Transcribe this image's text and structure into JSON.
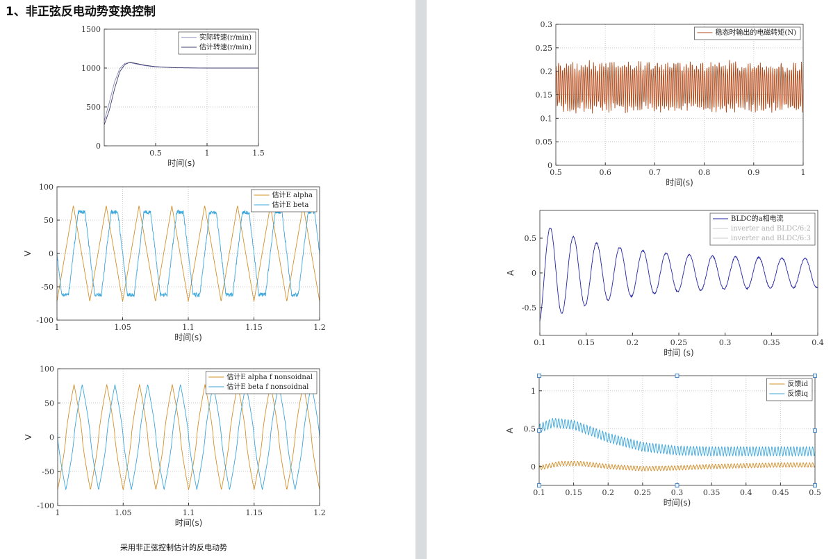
{
  "document": {
    "heading": "1、非正弦反电动势变换控制",
    "caption": "采用非正弦控制估计的反电动势"
  },
  "chart_data": [
    {
      "id": "speed",
      "type": "line",
      "xlabel": "时间(s)",
      "ylabel": "",
      "xlim": [
        0,
        1.5
      ],
      "ylim": [
        0,
        1500
      ],
      "xticks": [
        0.5,
        1,
        1.5
      ],
      "xticklabels": [
        "0.5",
        "1",
        "1.5"
      ],
      "yticks": [
        0,
        500,
        1000,
        1500
      ],
      "yticklabels": [
        "0",
        "500",
        "1000",
        "1500"
      ],
      "grid": true,
      "legend": "top-right",
      "series": [
        {
          "name": "实际转速(r/min)",
          "color": "#8a89b8",
          "x": [
            0,
            0.05,
            0.1,
            0.15,
            0.2,
            0.25,
            0.3,
            0.4,
            0.5,
            0.7,
            1.0,
            1.5
          ],
          "y": [
            320,
            560,
            820,
            990,
            1060,
            1070,
            1055,
            1030,
            1015,
            1003,
            1000,
            1000
          ]
        },
        {
          "name": "估计转速(r/min)",
          "color": "#3c3c6e",
          "x": [
            0,
            0.05,
            0.1,
            0.15,
            0.2,
            0.25,
            0.3,
            0.4,
            0.5,
            0.7,
            1.0,
            1.5
          ],
          "y": [
            270,
            460,
            730,
            950,
            1045,
            1075,
            1062,
            1035,
            1018,
            1004,
            1000,
            1000
          ]
        }
      ]
    },
    {
      "id": "emf-est",
      "type": "line",
      "xlabel": "时间(s)",
      "ylabel": "V",
      "xlim": [
        1,
        1.2
      ],
      "ylim": [
        -100,
        100
      ],
      "xticks": [
        1,
        1.05,
        1.1,
        1.15,
        1.2
      ],
      "xticklabels": [
        "1",
        "1.05",
        "1.1",
        "1.15",
        "1.2"
      ],
      "yticks": [
        -100,
        -50,
        0,
        50,
        100
      ],
      "yticklabels": [
        "-100",
        "-50",
        "0",
        "50",
        "100"
      ],
      "grid": true,
      "legend": "top-right",
      "wave": {
        "frequency_hz": 40,
        "kind": "triangle_trapezoid"
      },
      "series": [
        {
          "name": "估计E alpha",
          "color": "#d4902a",
          "amplitude": 72,
          "phase_deg": 0,
          "shape": "triangle"
        },
        {
          "name": "估计E beta",
          "color": "#3aa6dc",
          "amplitude": 62,
          "phase_deg": -90,
          "shape": "trapezoid"
        }
      ]
    },
    {
      "id": "emf-nonsin",
      "type": "line",
      "xlabel": "时间(s)",
      "ylabel": "V",
      "xlim": [
        1,
        1.2
      ],
      "ylim": [
        -100,
        100
      ],
      "xticks": [
        1,
        1.05,
        1.1,
        1.15,
        1.2
      ],
      "xticklabels": [
        "1",
        "1.05",
        "1.1",
        "1.15",
        "1.2"
      ],
      "yticks": [
        -100,
        -50,
        0,
        50,
        100
      ],
      "yticklabels": [
        "-100",
        "-50",
        "0",
        "50",
        "100"
      ],
      "grid": true,
      "legend": "top-right",
      "wave": {
        "frequency_hz": 40,
        "kind": "nonsinusoidal"
      },
      "series": [
        {
          "name": "估计E alpha f nonsoidnal",
          "color": "#d4902a",
          "amplitude": 77,
          "phase_deg": 0,
          "shape": "peaked"
        },
        {
          "name": "估计E beta f nonsoidnal",
          "color": "#3aa6dc",
          "amplitude": 77,
          "phase_deg": -90,
          "shape": "peaked"
        }
      ]
    },
    {
      "id": "torque",
      "type": "line",
      "xlabel": "时间(s)",
      "ylabel": "",
      "xlim": [
        0.5,
        1
      ],
      "ylim": [
        0,
        0.3
      ],
      "xticks": [
        0.5,
        0.6,
        0.7,
        0.8,
        0.9,
        1
      ],
      "xticklabels": [
        "0.5",
        "0.6",
        "0.7",
        "0.8",
        "0.9",
        "1"
      ],
      "yticks": [
        0,
        0.05,
        0.1,
        0.15,
        0.2,
        0.25,
        0.3
      ],
      "yticklabels": [
        "0",
        "0.05",
        "0.1",
        "0.15",
        "0.2",
        "0.25",
        "0.3"
      ],
      "grid": true,
      "legend": "top-right",
      "series": [
        {
          "name": "稳态时输出的电磁转矩(N)",
          "color": "#b34a1a",
          "mean": 0.167,
          "ripple_amplitude": 0.045,
          "ripple_hz": 240
        }
      ]
    },
    {
      "id": "phase-current",
      "type": "line",
      "xlabel": "时间 (s)",
      "ylabel": "A",
      "xlim": [
        0.1,
        0.4
      ],
      "ylim": [
        -0.9,
        0.9
      ],
      "xticks": [
        0.1,
        0.15,
        0.2,
        0.25,
        0.3,
        0.35,
        0.4
      ],
      "xticklabels": [
        "0.1",
        "0.15",
        "0.2",
        "0.25",
        "0.3",
        "0.35",
        "0.4"
      ],
      "yticks": [
        -0.5,
        0,
        0.5
      ],
      "yticklabels": [
        "-0.5",
        "0",
        "0.5"
      ],
      "grid": false,
      "legend": "top-right",
      "series": [
        {
          "name": "BLDC的a相电流",
          "color": "#2222a0",
          "frequency_hz": 40,
          "amplitude_start": 0.72,
          "amplitude_end": 0.2,
          "offset_end": 0.0
        },
        {
          "name": "inverter and BLDC/6:2",
          "color": "#bbbbbb",
          "visible": false
        },
        {
          "name": "inverter and BLDC/6:3",
          "color": "#bbbbbb",
          "visible": false
        }
      ]
    },
    {
      "id": "feedback",
      "type": "line",
      "xlabel": "时间(s)",
      "ylabel": "A",
      "xlim": [
        0.1,
        0.5
      ],
      "ylim": [
        -0.25,
        1.2
      ],
      "xticks": [
        0.1,
        0.15,
        0.2,
        0.25,
        0.3,
        0.35,
        0.4,
        0.45,
        0.5
      ],
      "xticklabels": [
        "0.1",
        "0.15",
        "0.2",
        "0.25",
        "0.3",
        "0.35",
        "0.4",
        "0.45",
        "0.5"
      ],
      "yticks": [
        0,
        0.5,
        1
      ],
      "yticklabels": [
        "0",
        "0.5",
        "1"
      ],
      "grid": true,
      "legend": "top-right",
      "series": [
        {
          "name": "反馈id",
          "color": "#d4902a",
          "x": [
            0.1,
            0.13,
            0.16,
            0.2,
            0.25,
            0.3,
            0.35,
            0.4,
            0.45,
            0.5
          ],
          "y": [
            -0.02,
            0.04,
            0.04,
            0.0,
            -0.03,
            -0.02,
            0.0,
            0.01,
            0.02,
            0.02
          ],
          "ripple_amplitude": 0.03
        },
        {
          "name": "反馈iq",
          "color": "#3aa6dc",
          "x": [
            0.1,
            0.12,
            0.15,
            0.18,
            0.2,
            0.25,
            0.3,
            0.35,
            0.4,
            0.45,
            0.5
          ],
          "y": [
            0.5,
            0.58,
            0.55,
            0.45,
            0.38,
            0.26,
            0.21,
            0.2,
            0.2,
            0.2,
            0.2
          ],
          "ripple_amplitude": 0.06
        }
      ]
    }
  ]
}
